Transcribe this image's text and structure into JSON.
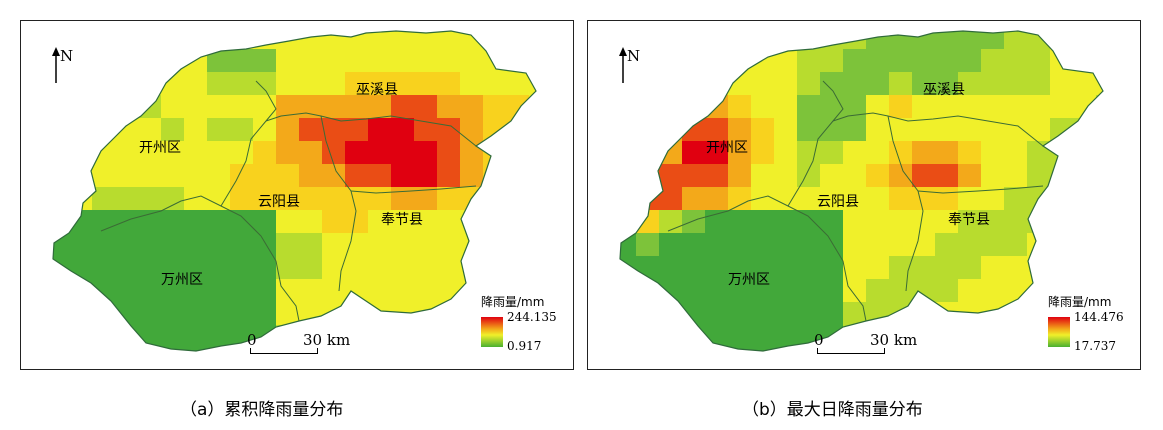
{
  "panels": [
    {
      "id": "a",
      "north_label": "N",
      "counties": [
        "巫溪县",
        "开州区",
        "云阳县",
        "奉节县",
        "万州区"
      ],
      "legend": {
        "title": "降雨量/mm",
        "max": "244.135",
        "min": "0.917"
      },
      "scalebar": {
        "zero": "0",
        "distance": "30 km"
      },
      "caption": "（a）累积降雨量分布"
    },
    {
      "id": "b",
      "north_label": "N",
      "counties": [
        "巫溪县",
        "开州区",
        "云阳县",
        "奉节县",
        "万州区"
      ],
      "legend": {
        "title": "降雨量/mm",
        "max": "144.476",
        "min": "17.737"
      },
      "scalebar": {
        "zero": "0",
        "distance": "30 km"
      },
      "caption": "（b）最大日降雨量分布"
    }
  ],
  "colors": {
    "high": "#e00010",
    "upper": "#f3a91a",
    "mid": "#f0f02a",
    "low": "#49b030",
    "boundary": "#2f6b3a"
  }
}
